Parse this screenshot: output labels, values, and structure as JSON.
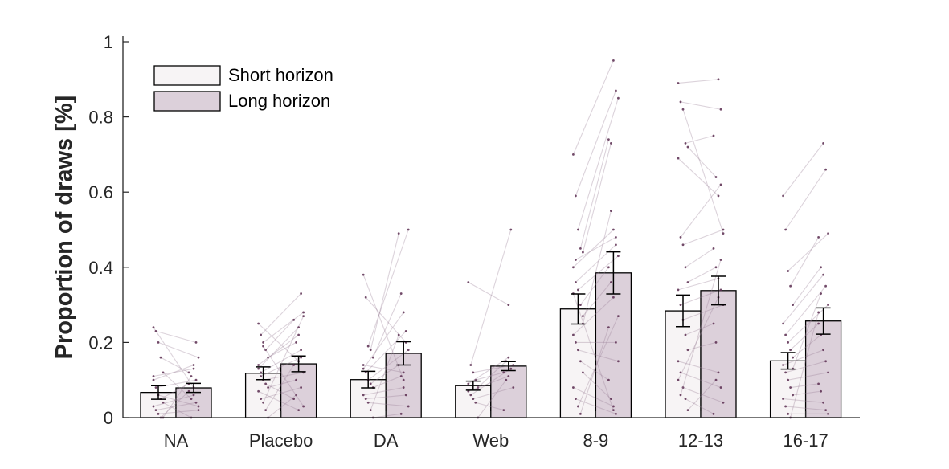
{
  "chart_data": {
    "type": "bar",
    "ylabel": "Proportion of draws [%]",
    "xlabel": "",
    "ylim": [
      0,
      1
    ],
    "yticks": [
      0,
      0.2,
      0.4,
      0.6,
      0.8,
      1
    ],
    "ytick_labels": [
      "0",
      "0.2",
      "0.4",
      "0.6",
      "0.8",
      "1"
    ],
    "categories": [
      "NA",
      "Placebo",
      "DA",
      "Web",
      "8-9",
      "12-13",
      "16-17"
    ],
    "series": [
      {
        "name": "Short horizon",
        "color": "#f7f4f5",
        "values": [
          0.067,
          0.118,
          0.101,
          0.085,
          0.289,
          0.284,
          0.151
        ],
        "sem": [
          0.018,
          0.017,
          0.022,
          0.012,
          0.04,
          0.042,
          0.022
        ]
      },
      {
        "name": "Long horizon",
        "color": "#dcd0da",
        "values": [
          0.079,
          0.143,
          0.171,
          0.137,
          0.385,
          0.338,
          0.257
        ],
        "sem": [
          0.012,
          0.021,
          0.031,
          0.012,
          0.056,
          0.038,
          0.035
        ]
      }
    ],
    "subject_line_color": "#9c8297",
    "subject_dot_color": "#5a2d50",
    "subjects": [
      [
        [
          0.24,
          0.08
        ],
        [
          0.23,
          0.2
        ],
        [
          0.2,
          0.16
        ],
        [
          0.16,
          0.12
        ],
        [
          0.12,
          0.05
        ],
        [
          0.1,
          0.14
        ],
        [
          0.08,
          0.1
        ],
        [
          0.06,
          0.03
        ],
        [
          0.05,
          0.09
        ],
        [
          0.04,
          0.0
        ],
        [
          0.03,
          0.06
        ],
        [
          0.02,
          0.04
        ],
        [
          0.01,
          0.02
        ],
        [
          0.0,
          0.07
        ],
        [
          0.0,
          0.11
        ],
        [
          0.11,
          0.13
        ]
      ],
      [
        [
          0.25,
          0.15
        ],
        [
          0.22,
          0.33
        ],
        [
          0.2,
          0.28
        ],
        [
          0.18,
          0.26
        ],
        [
          0.16,
          0.2
        ],
        [
          0.14,
          0.22
        ],
        [
          0.12,
          0.18
        ],
        [
          0.1,
          0.12
        ],
        [
          0.09,
          0.05
        ],
        [
          0.08,
          0.1
        ],
        [
          0.07,
          0.02
        ],
        [
          0.05,
          0.08
        ],
        [
          0.04,
          0.27
        ],
        [
          0.02,
          0.14
        ],
        [
          0.0,
          0.06
        ],
        [
          0.13,
          0.24
        ],
        [
          0.11,
          0.16
        ],
        [
          0.19,
          0.03
        ]
      ],
      [
        [
          0.38,
          0.1
        ],
        [
          0.32,
          0.2
        ],
        [
          0.19,
          0.5
        ],
        [
          0.18,
          0.49
        ],
        [
          0.16,
          0.33
        ],
        [
          0.13,
          0.28
        ],
        [
          0.12,
          0.23
        ],
        [
          0.1,
          0.18
        ],
        [
          0.09,
          0.14
        ],
        [
          0.08,
          0.11
        ],
        [
          0.06,
          0.08
        ],
        [
          0.05,
          0.06
        ],
        [
          0.04,
          0.03
        ],
        [
          0.02,
          0.22
        ],
        [
          0.0,
          0.01
        ],
        [
          0.14,
          0.12
        ]
      ],
      [
        [
          0.36,
          0.3
        ],
        [
          0.14,
          0.5
        ],
        [
          0.12,
          0.14
        ],
        [
          0.1,
          0.12
        ],
        [
          0.08,
          0.15
        ],
        [
          0.07,
          0.11
        ],
        [
          0.06,
          0.13
        ],
        [
          0.05,
          0.08
        ],
        [
          0.04,
          0.02
        ],
        [
          0.0,
          0.1
        ],
        [
          0.09,
          0.16
        ]
      ],
      [
        [
          0.7,
          0.95
        ],
        [
          0.59,
          0.87
        ],
        [
          0.5,
          0.85
        ],
        [
          0.45,
          0.74
        ],
        [
          0.44,
          0.73
        ],
        [
          0.4,
          0.5
        ],
        [
          0.36,
          0.46
        ],
        [
          0.34,
          0.43
        ],
        [
          0.3,
          0.4
        ],
        [
          0.27,
          0.36
        ],
        [
          0.22,
          0.32
        ],
        [
          0.2,
          0.2
        ],
        [
          0.18,
          0.15
        ],
        [
          0.15,
          0.1
        ],
        [
          0.12,
          0.05
        ],
        [
          0.08,
          0.03
        ],
        [
          0.05,
          0.01
        ],
        [
          0.03,
          0.27
        ],
        [
          0.01,
          0.24
        ],
        [
          0.25,
          0.55
        ],
        [
          0.33,
          0.02
        ],
        [
          0.42,
          0.48
        ]
      ],
      [
        [
          0.89,
          0.9
        ],
        [
          0.84,
          0.82
        ],
        [
          0.82,
          0.49
        ],
        [
          0.73,
          0.75
        ],
        [
          0.72,
          0.64
        ],
        [
          0.69,
          0.59
        ],
        [
          0.48,
          0.62
        ],
        [
          0.46,
          0.5
        ],
        [
          0.4,
          0.45
        ],
        [
          0.36,
          0.4
        ],
        [
          0.34,
          0.37
        ],
        [
          0.3,
          0.34
        ],
        [
          0.26,
          0.3
        ],
        [
          0.22,
          0.25
        ],
        [
          0.18,
          0.2
        ],
        [
          0.15,
          0.12
        ],
        [
          0.12,
          0.08
        ],
        [
          0.08,
          0.04
        ],
        [
          0.05,
          0.01
        ],
        [
          0.02,
          0.1
        ],
        [
          0.1,
          0.32
        ],
        [
          0.06,
          0.42
        ]
      ],
      [
        [
          0.59,
          0.73
        ],
        [
          0.5,
          0.66
        ],
        [
          0.39,
          0.49
        ],
        [
          0.35,
          0.48
        ],
        [
          0.3,
          0.4
        ],
        [
          0.25,
          0.38
        ],
        [
          0.22,
          0.35
        ],
        [
          0.2,
          0.3
        ],
        [
          0.18,
          0.25
        ],
        [
          0.16,
          0.22
        ],
        [
          0.14,
          0.18
        ],
        [
          0.12,
          0.15
        ],
        [
          0.1,
          0.12
        ],
        [
          0.08,
          0.09
        ],
        [
          0.06,
          0.07
        ],
        [
          0.05,
          0.04
        ],
        [
          0.03,
          0.02
        ],
        [
          0.01,
          0.01
        ],
        [
          0.0,
          0.28
        ],
        [
          0.13,
          0.33
        ]
      ]
    ]
  },
  "legend": {
    "items": [
      {
        "label": "Short horizon",
        "color": "#f7f4f5"
      },
      {
        "label": "Long horizon",
        "color": "#dcd0da"
      }
    ]
  }
}
